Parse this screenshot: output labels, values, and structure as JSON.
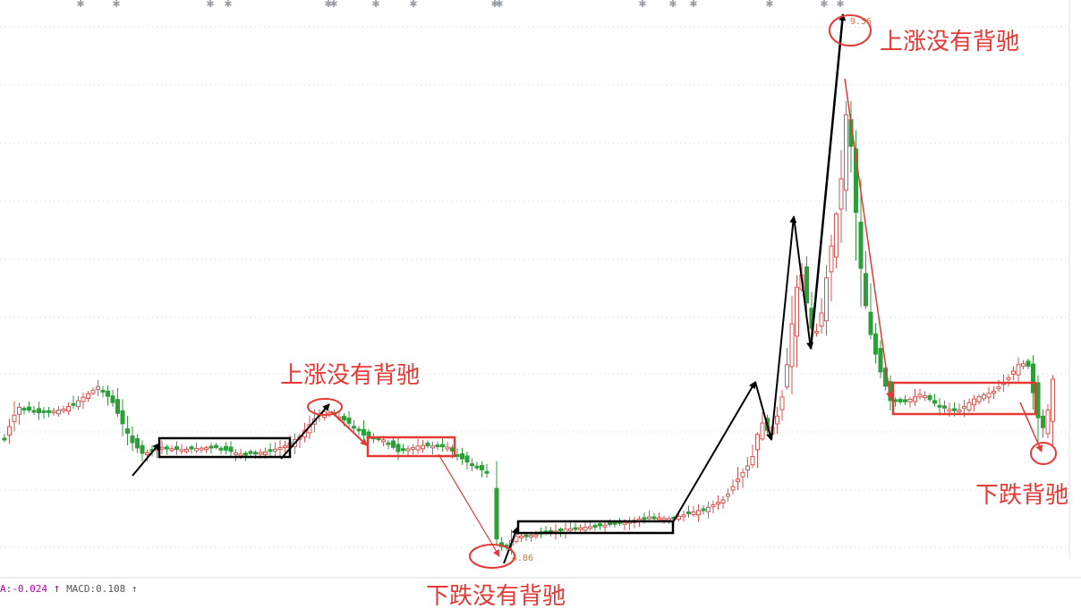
{
  "chart_data": {
    "type": "candlestick",
    "title": "",
    "price_labels": {
      "high": "9.56",
      "low": "4.86"
    },
    "annotations": {
      "up_no_div_1": "上涨没有背驰",
      "down_no_div": "下跌没有背驰",
      "up_no_div_2": "上涨没有背驰",
      "down_div": "下跌背驰"
    },
    "indicator": {
      "dea_label": "A:-0.024",
      "macd_label": "MACD:0.108"
    },
    "colors": {
      "up": "#d9534f",
      "down": "#2e9e3a",
      "annotation": "#e53935",
      "box_black": "#000000"
    },
    "grid": true
  }
}
